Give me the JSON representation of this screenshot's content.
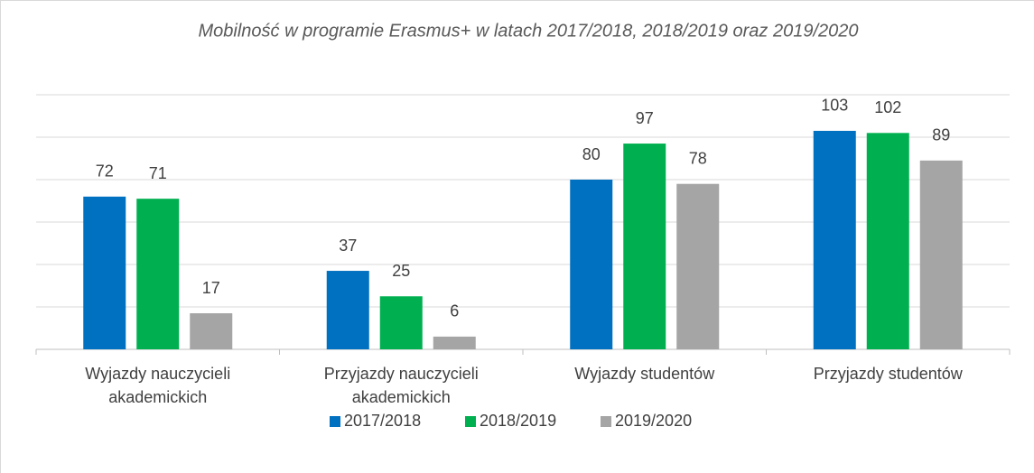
{
  "chart_data": {
    "type": "bar",
    "title": "Mobilność w programie Erasmus+ w latach 2017/2018, 2018/2019 oraz 2019/2020",
    "categories": [
      "Wyjazdy nauczycieli\nakademickich",
      "Przyjazdy nauczycieli\nakademickich",
      "Wyjazdy studentów",
      "Przyjazdy studentów"
    ],
    "series": [
      {
        "name": "2017/2018",
        "color": "#0070c0",
        "values": [
          72,
          37,
          80,
          103
        ]
      },
      {
        "name": "2018/2019",
        "color": "#00b050",
        "values": [
          71,
          25,
          97,
          102
        ]
      },
      {
        "name": "2019/2020",
        "color": "#a5a5a5",
        "values": [
          17,
          6,
          78,
          89
        ]
      }
    ],
    "ylim": [
      0,
      120
    ],
    "yticks": [
      0,
      20,
      40,
      60,
      80,
      100,
      120
    ],
    "grid": true,
    "legend": "bottom"
  }
}
